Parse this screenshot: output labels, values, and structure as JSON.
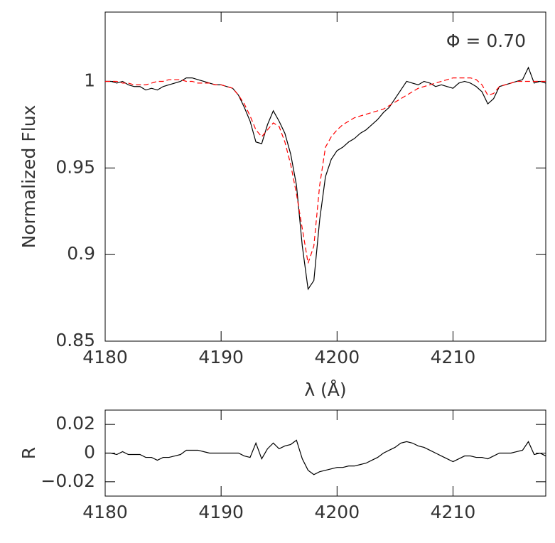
{
  "chart_data": [
    {
      "type": "line",
      "ylabel": "Normalized Flux",
      "xlabel": "λ (Å)",
      "annotation": "Φ = 0.70",
      "xlim": [
        4180,
        4218
      ],
      "xticks": [
        4180,
        4190,
        4200,
        4210
      ],
      "ylim": [
        0.85,
        1.04
      ],
      "yticks": [
        0.85,
        0.9,
        0.95,
        1
      ],
      "x": [
        4180,
        4180.5,
        4181,
        4181.5,
        4182,
        4182.5,
        4183,
        4183.5,
        4184,
        4184.5,
        4185,
        4185.5,
        4186,
        4186.5,
        4187,
        4187.5,
        4188,
        4188.5,
        4189,
        4189.5,
        4190,
        4190.5,
        4191,
        4191.5,
        4192,
        4192.5,
        4193,
        4193.5,
        4194,
        4194.5,
        4195,
        4195.5,
        4196,
        4196.5,
        4197,
        4197.5,
        4198,
        4198.5,
        4199,
        4199.5,
        4200,
        4200.5,
        4201,
        4201.5,
        4202,
        4202.5,
        4203,
        4203.5,
        4204,
        4204.5,
        4205,
        4205.5,
        4206,
        4206.5,
        4207,
        4207.5,
        4208,
        4208.5,
        4209,
        4209.5,
        4210,
        4210.5,
        4211,
        4211.5,
        4212,
        4212.5,
        4213,
        4213.5,
        4214,
        4214.5,
        4215,
        4215.5,
        4216,
        4216.5,
        4217,
        4217.5,
        4218
      ],
      "series": [
        {
          "color": "#000000",
          "dash": false,
          "values": [
            1.0,
            1.0,
            0.999,
            1.0,
            0.998,
            0.997,
            0.997,
            0.995,
            0.996,
            0.995,
            0.997,
            0.998,
            0.999,
            1.0,
            1.002,
            1.002,
            1.001,
            1.0,
            0.999,
            0.998,
            0.998,
            0.997,
            0.996,
            0.992,
            0.985,
            0.977,
            0.965,
            0.964,
            0.975,
            0.983,
            0.977,
            0.97,
            0.958,
            0.94,
            0.905,
            0.88,
            0.885,
            0.92,
            0.945,
            0.955,
            0.96,
            0.962,
            0.965,
            0.967,
            0.97,
            0.972,
            0.975,
            0.978,
            0.982,
            0.985,
            0.99,
            0.995,
            1.0,
            0.999,
            0.998,
            1.0,
            0.999,
            0.997,
            0.998,
            0.997,
            0.996,
            0.999,
            1.0,
            0.999,
            0.997,
            0.994,
            0.987,
            0.99,
            0.997,
            0.998,
            0.999,
            1.0,
            1.001,
            1.008,
            0.999,
            1.0,
            0.999
          ]
        },
        {
          "color": "#ff0000",
          "dash": true,
          "values": [
            1.0,
            1.0,
            1.0,
            0.999,
            0.999,
            0.998,
            0.998,
            0.998,
            0.999,
            1.0,
            1.0,
            1.001,
            1.001,
            1.001,
            1.0,
            1.0,
            0.999,
            0.999,
            0.999,
            0.998,
            0.998,
            0.997,
            0.996,
            0.992,
            0.987,
            0.98,
            0.972,
            0.968,
            0.972,
            0.976,
            0.974,
            0.965,
            0.952,
            0.935,
            0.915,
            0.895,
            0.905,
            0.94,
            0.962,
            0.968,
            0.972,
            0.975,
            0.977,
            0.979,
            0.98,
            0.981,
            0.982,
            0.983,
            0.984,
            0.986,
            0.988,
            0.99,
            0.992,
            0.994,
            0.996,
            0.997,
            0.998,
            0.999,
            1.0,
            1.001,
            1.002,
            1.002,
            1.002,
            1.002,
            1.001,
            0.998,
            0.992,
            0.993,
            0.997,
            0.998,
            0.999,
            1.0,
            1.0,
            1.0,
            1.0,
            1.0,
            1.0
          ]
        }
      ]
    },
    {
      "type": "line",
      "ylabel": "R",
      "xlim": [
        4180,
        4218
      ],
      "xticks": [
        4180,
        4190,
        4200,
        4210
      ],
      "ylim": [
        -0.03,
        0.03
      ],
      "yticks": [
        {
          "value": -0.02,
          "label": "−0.02"
        },
        0,
        0.02
      ],
      "x": [
        4180,
        4180.5,
        4181,
        4181.5,
        4182,
        4182.5,
        4183,
        4183.5,
        4184,
        4184.5,
        4185,
        4185.5,
        4186,
        4186.5,
        4187,
        4187.5,
        4188,
        4188.5,
        4189,
        4189.5,
        4190,
        4190.5,
        4191,
        4191.5,
        4192,
        4192.5,
        4193,
        4193.5,
        4194,
        4194.5,
        4195,
        4195.5,
        4196,
        4196.5,
        4197,
        4197.5,
        4198,
        4198.5,
        4199,
        4199.5,
        4200,
        4200.5,
        4201,
        4201.5,
        4202,
        4202.5,
        4203,
        4203.5,
        4204,
        4204.5,
        4205,
        4205.5,
        4206,
        4206.5,
        4207,
        4207.5,
        4208,
        4208.5,
        4209,
        4209.5,
        4210,
        4210.5,
        4211,
        4211.5,
        4212,
        4212.5,
        4213,
        4213.5,
        4214,
        4214.5,
        4215,
        4215.5,
        4216,
        4216.5,
        4217,
        4217.5,
        4218
      ],
      "series": [
        {
          "color": "#000000",
          "dash": false,
          "values": [
            0,
            0,
            -0.001,
            0.001,
            -0.001,
            -0.001,
            -0.001,
            -0.003,
            -0.003,
            -0.005,
            -0.003,
            -0.003,
            -0.002,
            -0.001,
            0.002,
            0.002,
            0.002,
            0.001,
            0,
            0,
            0,
            0,
            0,
            0,
            -0.002,
            -0.003,
            0.007,
            -0.004,
            0.003,
            0.007,
            0.003,
            0.005,
            0.006,
            0.009,
            -0.004,
            -0.012,
            -0.015,
            -0.013,
            -0.012,
            -0.011,
            -0.01,
            -0.01,
            -0.009,
            -0.009,
            -0.008,
            -0.007,
            -0.005,
            -0.003,
            0,
            0.002,
            0.004,
            0.007,
            0.008,
            0.007,
            0.005,
            0.004,
            0.002,
            0,
            -0.002,
            -0.004,
            -0.006,
            -0.004,
            -0.002,
            -0.002,
            -0.003,
            -0.003,
            -0.004,
            -0.002,
            0,
            0,
            0,
            0.001,
            0.002,
            0.008,
            -0.001,
            0,
            -0.002
          ]
        }
      ]
    }
  ]
}
